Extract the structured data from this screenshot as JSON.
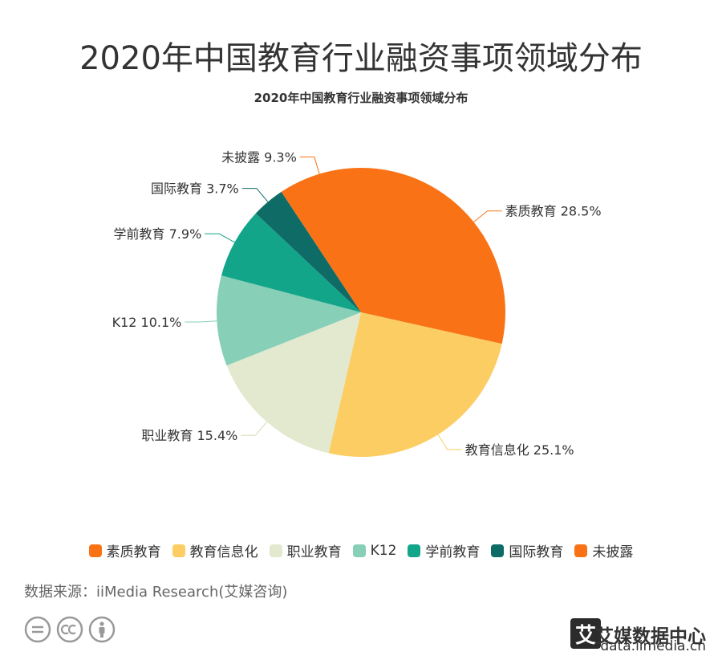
{
  "header": {
    "title": "2020年中国教育行业融资事项领域分布"
  },
  "chart_data": {
    "type": "pie",
    "title": "2020年中国教育行业融资事项领域分布",
    "unit": "%",
    "slices": [
      {
        "label": "素质教育",
        "value": 28.5,
        "color": "#F97316"
      },
      {
        "label": "教育信息化",
        "value": 25.1,
        "color": "#FBCD62"
      },
      {
        "label": "职业教育",
        "value": 15.4,
        "color": "#E2E9CF"
      },
      {
        "label": "K12",
        "value": 10.1,
        "color": "#88CFB8"
      },
      {
        "label": "学前教育",
        "value": 7.9,
        "color": "#13A589"
      },
      {
        "label": "国际教育",
        "value": 3.7,
        "color": "#0E6B66"
      },
      {
        "label": "未披露",
        "value": 9.3,
        "color": "#F97316"
      }
    ],
    "legend_position": "bottom",
    "start_angle": "top",
    "direction": "clockwise"
  },
  "footer": {
    "source": "数据来源：iiMedia Research(艾媒咨询)",
    "brand_name": "艾媒数据中心",
    "brand_url": "data.iimedia.cn",
    "brand_logo_char": "艾"
  }
}
